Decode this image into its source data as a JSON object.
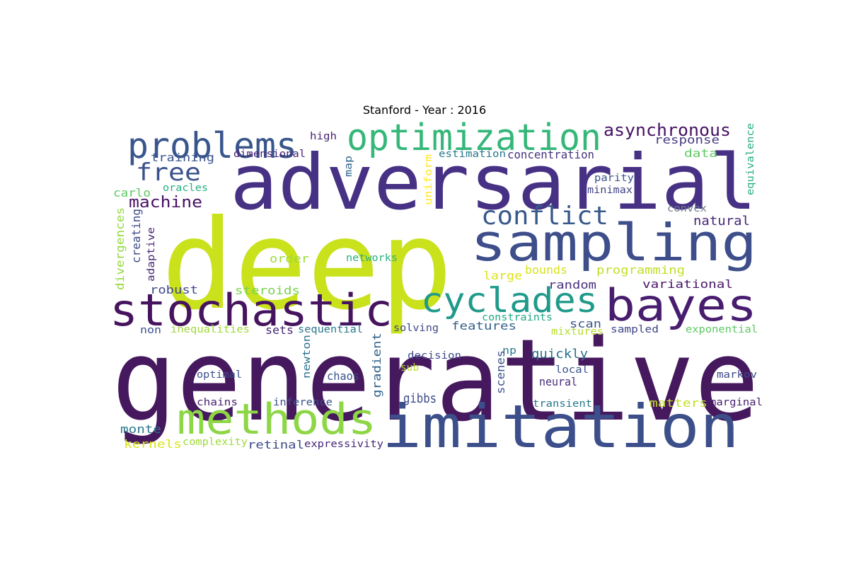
{
  "chart_data": {
    "type": "wordcloud",
    "title": "Stanford - Year : 2016",
    "words": [
      {
        "text": "generative",
        "color": "#46185e"
      },
      {
        "text": "deep",
        "color": "#c9e21c"
      },
      {
        "text": "adversarial",
        "color": "#473184"
      },
      {
        "text": "imitation",
        "color": "#3c4f8a"
      },
      {
        "text": "sampling",
        "color": "#3d4e8a"
      },
      {
        "text": "stochastic",
        "color": "#46145e"
      },
      {
        "text": "bayes",
        "color": "#481d6f"
      },
      {
        "text": "methods",
        "color": "#8dd645"
      },
      {
        "text": "optimization",
        "color": "#35b779"
      },
      {
        "text": "problems",
        "color": "#39568c"
      },
      {
        "text": "cyclades",
        "color": "#1f9a8a"
      },
      {
        "text": "conflict",
        "color": "#38598c"
      },
      {
        "text": "free",
        "color": "#3b518b"
      },
      {
        "text": "asynchronous",
        "color": "#471164"
      },
      {
        "text": "machine",
        "color": "#471063"
      },
      {
        "text": "training",
        "color": "#3a548c"
      },
      {
        "text": "dimensional",
        "color": "#482475"
      },
      {
        "text": "high",
        "color": "#482475"
      },
      {
        "text": "map",
        "color": "#31688e"
      },
      {
        "text": "uniform",
        "color": "#fde725"
      },
      {
        "text": "estimation",
        "color": "#2a788e"
      },
      {
        "text": "concentration",
        "color": "#46337f"
      },
      {
        "text": "response",
        "color": "#453882"
      },
      {
        "text": "data",
        "color": "#5ec962"
      },
      {
        "text": "equivalence",
        "color": "#29af7f"
      },
      {
        "text": "parity",
        "color": "#3b528b"
      },
      {
        "text": "minimax",
        "color": "#414487"
      },
      {
        "text": "convex",
        "color": "#6b7b8c"
      },
      {
        "text": "natural",
        "color": "#482677"
      },
      {
        "text": "carlo",
        "color": "#5ec962"
      },
      {
        "text": "oracles",
        "color": "#29af7f"
      },
      {
        "text": "divergences",
        "color": "#95d840"
      },
      {
        "text": "creating",
        "color": "#3e4a89"
      },
      {
        "text": "adaptive",
        "color": "#482475"
      },
      {
        "text": "order",
        "color": "#9fda3a"
      },
      {
        "text": "networks",
        "color": "#2ab07f"
      },
      {
        "text": "large",
        "color": "#dde318"
      },
      {
        "text": "bounds",
        "color": "#d8e219"
      },
      {
        "text": "programming",
        "color": "#c0df25"
      },
      {
        "text": "random",
        "color": "#46307e"
      },
      {
        "text": "variational",
        "color": "#481668"
      },
      {
        "text": "robust",
        "color": "#3f4788"
      },
      {
        "text": "steroids",
        "color": "#7ad151"
      },
      {
        "text": "constraints",
        "color": "#22a884"
      },
      {
        "text": "scan",
        "color": "#3a548c"
      },
      {
        "text": "features",
        "color": "#355f8d"
      },
      {
        "text": "mixtures",
        "color": "#b5de2b"
      },
      {
        "text": "sampled",
        "color": "#3f4788"
      },
      {
        "text": "exponential",
        "color": "#5ec962"
      },
      {
        "text": "non",
        "color": "#3b528b"
      },
      {
        "text": "inequalities",
        "color": "#a0da39"
      },
      {
        "text": "sets",
        "color": "#482878"
      },
      {
        "text": "sequential",
        "color": "#2a788e"
      },
      {
        "text": "solving",
        "color": "#3f4788"
      },
      {
        "text": "gradient",
        "color": "#33638d"
      },
      {
        "text": "newton",
        "color": "#2c728e"
      },
      {
        "text": "decision",
        "color": "#3e4989"
      },
      {
        "text": "np",
        "color": "#2a788e"
      },
      {
        "text": "scenes",
        "color": "#3b528b"
      },
      {
        "text": "quickly",
        "color": "#2c718e"
      },
      {
        "text": "local",
        "color": "#3b528b"
      },
      {
        "text": "neural",
        "color": "#472c7a"
      },
      {
        "text": "markov",
        "color": "#3e4989"
      },
      {
        "text": "optimal",
        "color": "#3b528b"
      },
      {
        "text": "chaos",
        "color": "#3b528b"
      },
      {
        "text": "sub",
        "color": "#b8de29"
      },
      {
        "text": "gibbs",
        "color": "#3e4989"
      },
      {
        "text": "chains",
        "color": "#481f70"
      },
      {
        "text": "inference",
        "color": "#3b528b"
      },
      {
        "text": "transient",
        "color": "#2a788e"
      },
      {
        "text": "matters",
        "color": "#c2df23"
      },
      {
        "text": "marginal",
        "color": "#481f70"
      },
      {
        "text": "monte",
        "color": "#2a788e"
      },
      {
        "text": "kernels",
        "color": "#dae319"
      },
      {
        "text": "complexity",
        "color": "#9fda3a"
      },
      {
        "text": "retinal",
        "color": "#3e4a89"
      },
      {
        "text": "expressivity",
        "color": "#482878"
      }
    ]
  }
}
